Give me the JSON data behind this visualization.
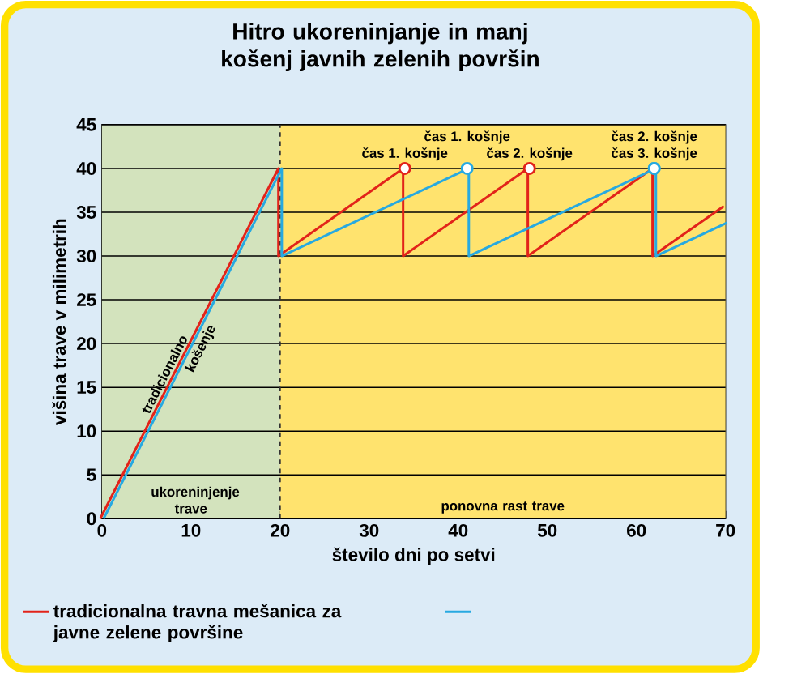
{
  "chart_data": {
    "type": "line",
    "title": "Hitro ukoreninjanje in manj košenj javnih zelenih površin",
    "xlabel": "število dni po setvi",
    "ylabel": "višina trave v milimetrih",
    "series": [
      {
        "name": "tradicionalna travna mešanica za javne zelene površine",
        "color": "#e2231a",
        "x": [
          0,
          20,
          20,
          34,
          34,
          48,
          48,
          62,
          62,
          70
        ],
        "values": [
          0,
          40,
          30,
          40,
          30,
          40,
          30,
          40,
          30,
          35.7
        ]
      },
      {
        "color": "#27a9e1",
        "x": [
          0,
          20,
          20,
          41,
          41,
          62,
          62,
          70
        ],
        "values": [
          0,
          40,
          30,
          40,
          30,
          40,
          30,
          33.8
        ]
      }
    ],
    "xlim": [
      0,
      70
    ],
    "ylim": [
      0,
      45
    ],
    "xticks": [
      0,
      10,
      20,
      30,
      40,
      50,
      60,
      70
    ],
    "yticks": [
      0,
      5,
      10,
      15,
      20,
      25,
      30,
      35,
      40,
      45
    ],
    "grid": "y",
    "legend": "bottom",
    "bands": [
      {
        "axis": "x",
        "from": 0,
        "to": 20,
        "label": "ukoreninjenje trave",
        "color": "#d3e3bd"
      },
      {
        "axis": "x",
        "from": 20,
        "to": 70,
        "label": "ponovna rast trave",
        "color": "#ffe36e"
      }
    ],
    "ref_lines": [
      {
        "axis": "x",
        "value": 20,
        "line_style": "dashed",
        "color": "#333333"
      }
    ],
    "annotations": [
      {
        "text": "tradicionalno",
        "x": 8,
        "y": 16
      },
      {
        "text": "košenje",
        "x": 10,
        "y": 20
      },
      {
        "text": "čas 1. košnje",
        "x": 34,
        "y": 40
      },
      {
        "text": "čas 1. košnje",
        "x": 41,
        "y": 40
      },
      {
        "text": "čas 2. košnje",
        "x": 48,
        "y": 40
      },
      {
        "text": "čas 3. košnje",
        "x": 62,
        "y": 40
      },
      {
        "text": "čas 2. košnje",
        "x": 62,
        "y": 40
      }
    ]
  }
}
